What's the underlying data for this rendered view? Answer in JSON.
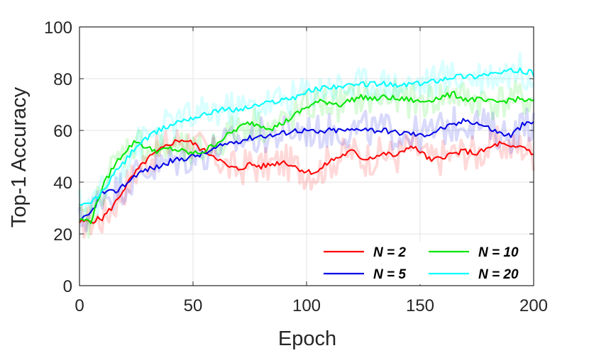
{
  "chart_data": {
    "type": "line",
    "xlabel": "Epoch",
    "ylabel": "Top-1 Accuracy",
    "xlim": [
      0,
      200
    ],
    "ylim": [
      0,
      100
    ],
    "xticks": [
      "0",
      "50",
      "100",
      "150",
      "200"
    ],
    "yticks": [
      "0",
      "20",
      "40",
      "60",
      "80",
      "100"
    ],
    "grid": true,
    "legend_position": "bottom-right",
    "series": [
      {
        "name": "N = 2",
        "color": "#ff0000",
        "x": [
          0,
          5,
          10,
          15,
          20,
          25,
          30,
          35,
          40,
          45,
          50,
          55,
          60,
          65,
          70,
          75,
          80,
          85,
          90,
          95,
          100,
          105,
          110,
          115,
          120,
          125,
          130,
          135,
          140,
          145,
          150,
          155,
          160,
          165,
          170,
          175,
          180,
          185,
          190,
          195,
          200
        ],
        "y": [
          24.5,
          25,
          26,
          31,
          38,
          44,
          49,
          52,
          55,
          56.5,
          55,
          52,
          50,
          46,
          45,
          47,
          46,
          47,
          48,
          46,
          44,
          44,
          48,
          50,
          52,
          49,
          50,
          51,
          50,
          54,
          52,
          48,
          50,
          51,
          52,
          51,
          53,
          55,
          53,
          54,
          51
        ]
      },
      {
        "name": "N = 5",
        "color": "#0000e6",
        "x": [
          0,
          5,
          10,
          15,
          20,
          25,
          30,
          35,
          40,
          45,
          50,
          55,
          60,
          65,
          70,
          75,
          80,
          85,
          90,
          95,
          100,
          105,
          110,
          115,
          120,
          125,
          130,
          135,
          140,
          145,
          150,
          155,
          160,
          165,
          170,
          175,
          180,
          185,
          190,
          195,
          200
        ],
        "y": [
          24.5,
          28,
          36,
          36,
          39,
          43,
          45,
          46,
          48,
          49,
          50,
          51,
          53,
          55,
          56,
          57,
          58,
          58,
          59,
          60,
          60,
          59,
          60,
          60,
          60,
          61,
          60,
          60,
          59,
          59,
          58,
          59,
          61,
          62,
          64,
          63,
          61,
          59,
          58,
          62,
          63
        ]
      },
      {
        "name": "N = 10",
        "color": "#00e600",
        "x": [
          0,
          5,
          10,
          15,
          20,
          25,
          30,
          35,
          40,
          45,
          50,
          55,
          60,
          65,
          70,
          75,
          80,
          85,
          90,
          95,
          100,
          105,
          110,
          115,
          120,
          125,
          130,
          135,
          140,
          145,
          150,
          155,
          160,
          165,
          170,
          175,
          180,
          185,
          190,
          195,
          200
        ],
        "y": [
          25.5,
          25,
          38,
          46,
          52,
          56,
          53,
          52,
          53,
          52,
          51,
          52,
          55,
          58,
          61,
          63,
          62,
          61,
          63,
          66,
          69,
          71,
          71,
          70,
          72,
          73,
          72,
          73,
          72,
          72,
          71,
          72,
          73,
          74,
          72,
          72,
          71,
          71,
          72,
          72,
          71
        ]
      },
      {
        "name": "N = 20",
        "color": "#00ffff",
        "x": [
          0,
          5,
          10,
          15,
          20,
          25,
          30,
          35,
          40,
          45,
          50,
          55,
          60,
          65,
          70,
          75,
          80,
          85,
          90,
          95,
          100,
          105,
          110,
          115,
          120,
          125,
          130,
          135,
          140,
          145,
          150,
          155,
          160,
          165,
          170,
          175,
          180,
          185,
          190,
          195,
          200
        ],
        "y": [
          30.5,
          32,
          36,
          43,
          48,
          54,
          57,
          60,
          62,
          64,
          65,
          66,
          68,
          68,
          68,
          69,
          70,
          71,
          72,
          73,
          75,
          76,
          77,
          77,
          77,
          78,
          78,
          78,
          77,
          78,
          78,
          79,
          80,
          81,
          81,
          81,
          82,
          82,
          83,
          83,
          82
        ]
      }
    ]
  }
}
